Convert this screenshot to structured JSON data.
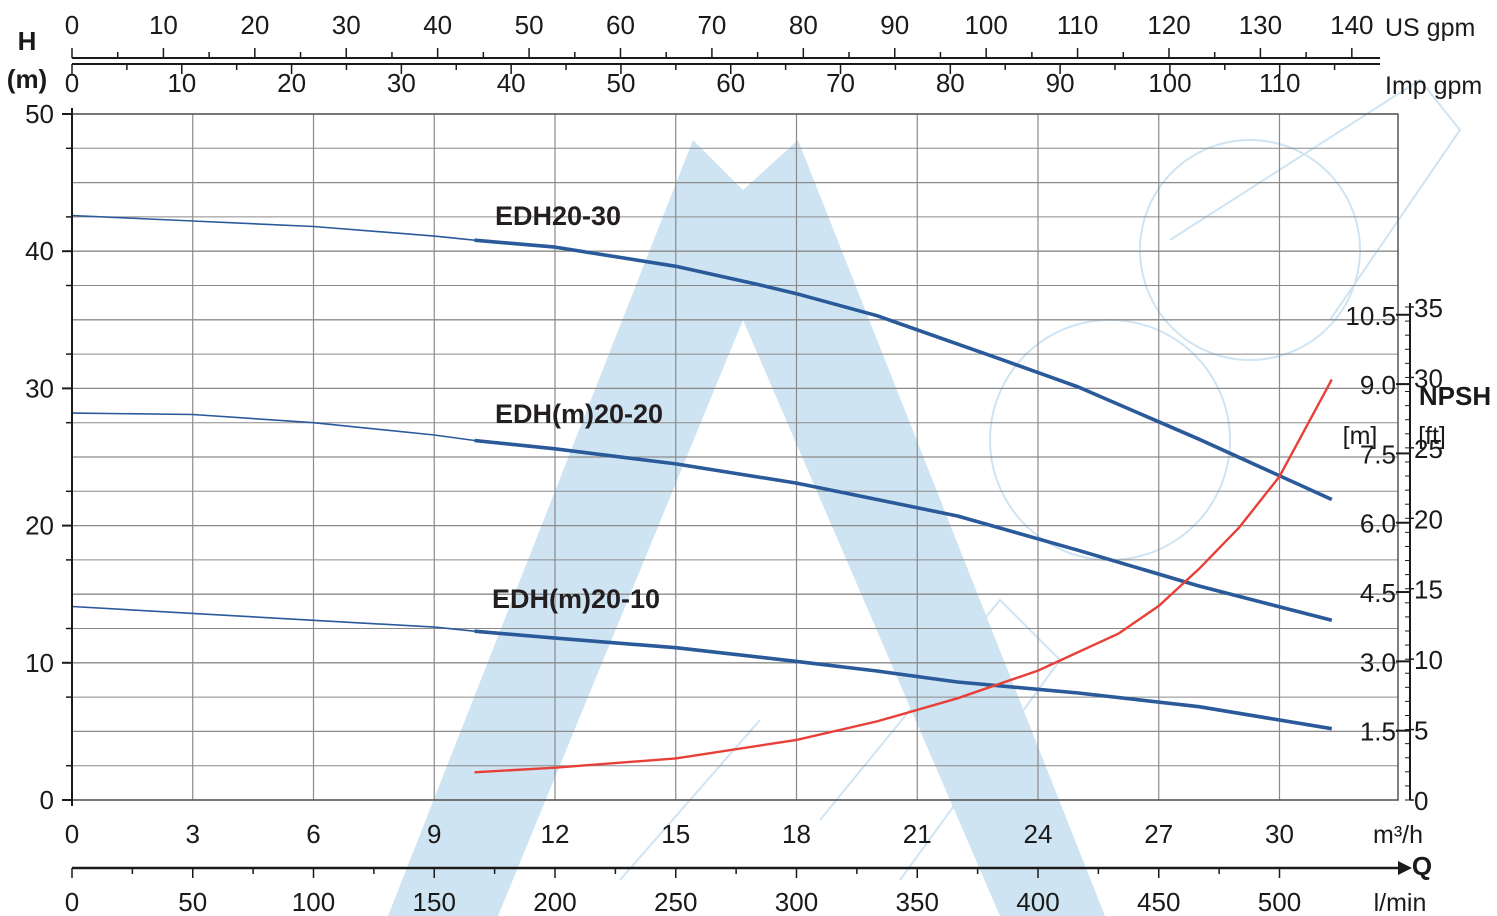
{
  "colors": {
    "head_curve": "#2a5a9a",
    "npsh_curve": "#e84038",
    "grid": "#8a8a8a",
    "axis": "#1a1a1a",
    "watermark": "#cfe4f3"
  },
  "chart_data": {
    "type": "line",
    "title": "",
    "labels": {
      "y_left_title_line1": "H",
      "y_left_title_line2": "(m)",
      "y_right_title": "NPSH",
      "y_right_unit_m": "[m]",
      "y_right_unit_ft": "[ft]",
      "x_m3h_unit": "m³/h",
      "x_q_title": "Q",
      "x_lmin_unit": "l/min",
      "x_usgpm_unit": "US gpm",
      "x_impgpm_unit": "Imp gpm"
    },
    "axes": {
      "x_m3h": {
        "range": [
          0,
          33
        ],
        "ticks": [
          0,
          3,
          6,
          9,
          12,
          15,
          18,
          21,
          24,
          27,
          30
        ]
      },
      "x_lmin": {
        "ticks": [
          0,
          50,
          100,
          150,
          200,
          250,
          300,
          350,
          400,
          450,
          500
        ]
      },
      "x_usgpm": {
        "ticks": [
          0,
          10,
          20,
          30,
          40,
          50,
          60,
          70,
          80,
          90,
          100,
          110,
          120,
          130,
          140
        ]
      },
      "x_impgpm": {
        "ticks": [
          0,
          10,
          20,
          30,
          40,
          50,
          60,
          70,
          80,
          90,
          100,
          110
        ]
      },
      "y_h": {
        "range": [
          0,
          50
        ],
        "ticks": [
          0,
          10,
          20,
          30,
          40,
          50
        ]
      },
      "y_npsh_m": {
        "ticks": [
          "1.5",
          "3.0",
          "4.5",
          "6.0",
          "7.5",
          "9.0",
          "10.5"
        ]
      },
      "y_npsh_ft": {
        "ticks": [
          0,
          5,
          10,
          15,
          20,
          25,
          30,
          35
        ]
      }
    },
    "grid": true,
    "series": [
      {
        "name": "EDH20-30",
        "x": [
          0,
          3,
          6,
          9,
          10,
          12,
          15,
          17,
          18,
          20,
          23,
          25,
          28,
          31.3
        ],
        "y": [
          42.6,
          42.2,
          41.8,
          41.1,
          40.8,
          40.3,
          38.9,
          37.6,
          36.9,
          35.3,
          32.2,
          30.1,
          26.3,
          21.9
        ]
      },
      {
        "name": "EDH(m)20-20",
        "x": [
          0,
          3,
          6,
          9,
          10,
          12,
          15,
          18,
          20,
          22,
          25,
          28,
          31.3
        ],
        "y": [
          28.2,
          28.1,
          27.5,
          26.6,
          26.2,
          25.6,
          24.5,
          23.1,
          21.9,
          20.7,
          18.2,
          15.6,
          13.1
        ]
      },
      {
        "name": "EDH(m)20-10",
        "x": [
          0,
          3,
          6,
          9,
          10,
          12,
          15,
          18,
          20,
          22,
          25,
          28,
          31.3
        ],
        "y": [
          14.1,
          13.6,
          13.1,
          12.6,
          12.3,
          11.8,
          11.1,
          10.1,
          9.4,
          8.6,
          7.8,
          6.8,
          5.2
        ]
      },
      {
        "name": "NPSH",
        "x": [
          10,
          12,
          15,
          18,
          20,
          22,
          24,
          26,
          27,
          28,
          29,
          30,
          31.3
        ],
        "y_npsh_m": [
          0.6,
          0.7,
          0.9,
          1.3,
          1.7,
          2.2,
          2.8,
          3.6,
          4.2,
          5.0,
          5.9,
          7.0,
          9.1
        ]
      }
    ]
  }
}
